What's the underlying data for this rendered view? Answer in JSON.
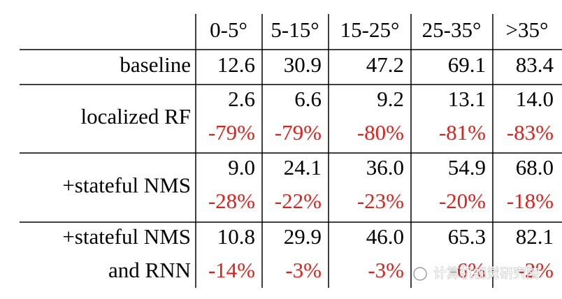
{
  "table": {
    "columns": [
      "0-5°",
      "5-15°",
      "15-25°",
      "25-35°",
      ">35°"
    ],
    "rows": [
      {
        "label_lines": [
          "baseline"
        ],
        "values": [
          "12.6",
          "30.9",
          "47.2",
          "69.1",
          "83.4"
        ]
      },
      {
        "label_lines": [
          "localized RF"
        ],
        "values": [
          "2.6",
          "6.6",
          "9.2",
          "13.1",
          "14.0"
        ],
        "changes": [
          "-79%",
          "-79%",
          "-80%",
          "-81%",
          "-83%"
        ]
      },
      {
        "label_lines": [
          "+stateful NMS"
        ],
        "values": [
          "9.0",
          "24.1",
          "36.0",
          "54.9",
          "68.0"
        ],
        "changes": [
          "-28%",
          "-22%",
          "-23%",
          "-20%",
          "-18%"
        ]
      },
      {
        "label_lines": [
          "+stateful NMS",
          "and RNN"
        ],
        "values": [
          "10.8",
          "29.9",
          "46.0",
          "65.3",
          "82.1"
        ],
        "changes": [
          "-14%",
          "-3%",
          "-3%",
          "-6%",
          "-2%"
        ]
      }
    ]
  },
  "watermark": {
    "text": "计算机视觉研究院"
  }
}
